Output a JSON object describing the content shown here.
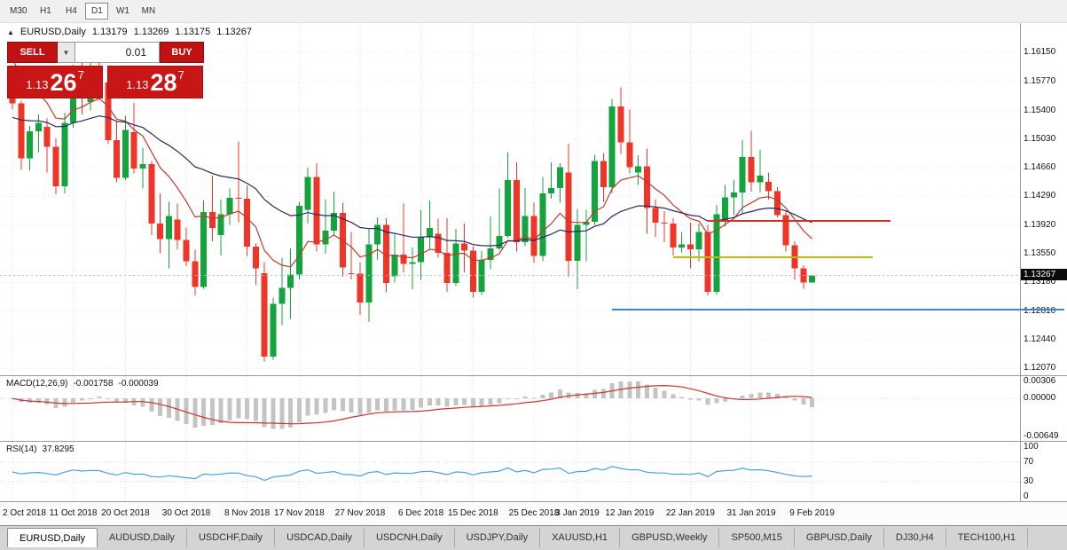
{
  "icons": {
    "panel_toggle": "▲",
    "volume_dropdown": "▼"
  },
  "toolbar": {
    "timeframes": [
      {
        "label": "M30",
        "active": false
      },
      {
        "label": "H1",
        "active": false
      },
      {
        "label": "H4",
        "active": false
      },
      {
        "label": "D1",
        "active": true
      },
      {
        "label": "W1",
        "active": false
      },
      {
        "label": "MN",
        "active": false
      }
    ]
  },
  "main_chart": {
    "symbol": "EURUSD,Daily",
    "open": "1.13179",
    "high": "1.13269",
    "low": "1.13175",
    "close": "1.13267"
  },
  "trade_panel": {
    "sell_label": "SELL",
    "buy_label": "BUY",
    "volume": "0.01",
    "bid": {
      "prefix": "1.13",
      "big": "26",
      "sup": "7"
    },
    "ask": {
      "prefix": "1.13",
      "big": "28",
      "sup": "7"
    }
  },
  "price_axis": {
    "current": "1.13267",
    "labels": [
      "1.16150",
      "1.15770",
      "1.15400",
      "1.15030",
      "1.14660",
      "1.14290",
      "1.13920",
      "1.13550",
      "1.13180",
      "1.12810",
      "1.12440",
      "1.12070"
    ]
  },
  "macd_panel": {
    "title": "MACD(12,26,9)",
    "value_main": "-0.001758",
    "value_signal": "-0.000039",
    "axis_labels": [
      {
        "text": "0.00306",
        "value": 0.00306
      },
      {
        "text": "0.00000",
        "value": 0
      },
      {
        "text": "-0.00649",
        "value": -0.00649
      }
    ]
  },
  "rsi_panel": {
    "title": "RSI(14)",
    "value": "37.8295",
    "axis_labels": [
      {
        "text": "100",
        "value": 100
      },
      {
        "text": "70",
        "value": 70
      },
      {
        "text": "30",
        "value": 30
      },
      {
        "text": "0",
        "value": 0
      }
    ]
  },
  "tabs": [
    {
      "label": "EURUSD,Daily",
      "active": true
    },
    {
      "label": "AUDUSD,Daily",
      "active": false
    },
    {
      "label": "USDCHF,Daily",
      "active": false
    },
    {
      "label": "USDCAD,Daily",
      "active": false
    },
    {
      "label": "USDCNH,Daily",
      "active": false
    },
    {
      "label": "USDJPY,Daily",
      "active": false
    },
    {
      "label": "XAUUSD,H1",
      "active": false
    },
    {
      "label": "GBPUSD,Weekly",
      "active": false
    },
    {
      "label": "SP500,M15",
      "active": false
    },
    {
      "label": "GBPUSD,Daily",
      "active": false
    },
    {
      "label": "DJ30,H4",
      "active": false
    },
    {
      "label": "TECH100,H1",
      "active": false
    }
  ],
  "chart_data": {
    "type": "candlestick",
    "title": "EURUSD,Daily",
    "bull_color": "#14a43e",
    "bear_color": "#ee3528",
    "price_axis": {
      "top": 1.1653,
      "bottom": 1.1198
    },
    "x_labels": [
      {
        "text": "2 Oct 2018",
        "bar": 0
      },
      {
        "text": "11 Oct 2018",
        "bar": 7
      },
      {
        "text": "20 Oct 2018",
        "bar": 13
      },
      {
        "text": "30 Oct 2018",
        "bar": 20
      },
      {
        "text": "8 Nov 2018",
        "bar": 27
      },
      {
        "text": "17 Nov 2018",
        "bar": 33
      },
      {
        "text": "27 Nov 2018",
        "bar": 40
      },
      {
        "text": "6 Dec 2018",
        "bar": 47
      },
      {
        "text": "15 Dec 2018",
        "bar": 53
      },
      {
        "text": "25 Dec 2018",
        "bar": 60
      },
      {
        "text": "3 Jan 2019",
        "bar": 65
      },
      {
        "text": "12 Jan 2019",
        "bar": 71
      },
      {
        "text": "22 Jan 2019",
        "bar": 78
      },
      {
        "text": "31 Jan 2019",
        "bar": 85
      },
      {
        "text": "9 Feb 2019",
        "bar": 92
      }
    ],
    "ohlc": [
      [
        1.1577,
        1.1581,
        1.1541,
        1.1549
      ],
      [
        1.1549,
        1.1553,
        1.1464,
        1.1478
      ],
      [
        1.1478,
        1.152,
        1.1463,
        1.1513
      ],
      [
        1.1513,
        1.1535,
        1.1486,
        1.1524
      ],
      [
        1.1519,
        1.153,
        1.146,
        1.1493
      ],
      [
        1.1493,
        1.1504,
        1.1432,
        1.1442
      ],
      [
        1.1442,
        1.1537,
        1.1433,
        1.1524
      ],
      [
        1.1524,
        1.1599,
        1.1518,
        1.1593
      ],
      [
        1.1593,
        1.161,
        1.1535,
        1.1561
      ],
      [
        1.1551,
        1.1606,
        1.154,
        1.158
      ],
      [
        1.158,
        1.1622,
        1.1565,
        1.1576
      ],
      [
        1.1576,
        1.1581,
        1.1497,
        1.1502
      ],
      [
        1.1502,
        1.1527,
        1.1447,
        1.1453
      ],
      [
        1.1453,
        1.1533,
        1.145,
        1.1515
      ],
      [
        1.1512,
        1.155,
        1.1459,
        1.1465
      ],
      [
        1.1465,
        1.1492,
        1.1439,
        1.1471
      ],
      [
        1.1471,
        1.1475,
        1.1379,
        1.1394
      ],
      [
        1.1394,
        1.1433,
        1.1356,
        1.1374
      ],
      [
        1.1374,
        1.1422,
        1.1336,
        1.1404
      ],
      [
        1.1399,
        1.142,
        1.1361,
        1.1373
      ],
      [
        1.1373,
        1.1389,
        1.1339,
        1.1345
      ],
      [
        1.1345,
        1.136,
        1.1301,
        1.1312
      ],
      [
        1.1312,
        1.1424,
        1.131,
        1.1409
      ],
      [
        1.1409,
        1.1456,
        1.1371,
        1.1388
      ],
      [
        1.1379,
        1.1425,
        1.1353,
        1.1406
      ],
      [
        1.1406,
        1.1439,
        1.1392,
        1.1427
      ],
      [
        1.1427,
        1.15,
        1.1395,
        1.1426
      ],
      [
        1.1426,
        1.1443,
        1.1352,
        1.1364
      ],
      [
        1.1364,
        1.1368,
        1.1315,
        1.1336
      ],
      [
        1.133,
        1.1344,
        1.1216,
        1.1222
      ],
      [
        1.1222,
        1.1298,
        1.1218,
        1.129
      ],
      [
        1.129,
        1.1349,
        1.1263,
        1.1311
      ],
      [
        1.1311,
        1.1362,
        1.1271,
        1.1328
      ],
      [
        1.1328,
        1.1422,
        1.1322,
        1.1417
      ],
      [
        1.1412,
        1.1466,
        1.1394,
        1.1454
      ],
      [
        1.1454,
        1.1472,
        1.1358,
        1.1367
      ],
      [
        1.1367,
        1.1425,
        1.1355,
        1.1385
      ],
      [
        1.1385,
        1.1435,
        1.1378,
        1.1408
      ],
      [
        1.1408,
        1.1421,
        1.1325,
        1.1337
      ],
      [
        1.133,
        1.1383,
        1.1322,
        1.1329
      ],
      [
        1.1329,
        1.1344,
        1.1276,
        1.1292
      ],
      [
        1.1292,
        1.1388,
        1.1267,
        1.1367
      ],
      [
        1.1367,
        1.1402,
        1.1347,
        1.1392
      ],
      [
        1.1392,
        1.1401,
        1.1305,
        1.1317
      ],
      [
        1.1326,
        1.138,
        1.1318,
        1.1354
      ],
      [
        1.1354,
        1.142,
        1.1331,
        1.1342
      ],
      [
        1.1342,
        1.1363,
        1.1309,
        1.1344
      ],
      [
        1.1344,
        1.1412,
        1.1321,
        1.1376
      ],
      [
        1.1376,
        1.1424,
        1.136,
        1.1388
      ],
      [
        1.1381,
        1.14,
        1.135,
        1.1356
      ],
      [
        1.1356,
        1.1401,
        1.1306,
        1.1317
      ],
      [
        1.1317,
        1.1387,
        1.1313,
        1.1368
      ],
      [
        1.1368,
        1.1394,
        1.1331,
        1.1359
      ],
      [
        1.1359,
        1.1365,
        1.1298,
        1.1306
      ],
      [
        1.1306,
        1.1359,
        1.1302,
        1.1347
      ],
      [
        1.1347,
        1.1403,
        1.1335,
        1.1362
      ],
      [
        1.1362,
        1.1439,
        1.1359,
        1.1378
      ],
      [
        1.1378,
        1.1486,
        1.1375,
        1.145
      ],
      [
        1.145,
        1.1473,
        1.1358,
        1.137
      ],
      [
        1.137,
        1.144,
        1.1365,
        1.1404
      ],
      [
        1.1404,
        1.1421,
        1.1343,
        1.1352
      ],
      [
        1.1352,
        1.1454,
        1.1345,
        1.1433
      ],
      [
        1.1433,
        1.1473,
        1.1426,
        1.144
      ],
      [
        1.144,
        1.1472,
        1.1421,
        1.1467
      ],
      [
        1.146,
        1.1497,
        1.1325,
        1.1346
      ],
      [
        1.1346,
        1.1413,
        1.1309,
        1.1392
      ],
      [
        1.1392,
        1.1412,
        1.1345,
        1.1396
      ],
      [
        1.1396,
        1.1483,
        1.1392,
        1.1475
      ],
      [
        1.1475,
        1.1485,
        1.1422,
        1.1441
      ],
      [
        1.1441,
        1.1555,
        1.1433,
        1.1545
      ],
      [
        1.1545,
        1.157,
        1.1484,
        1.1499
      ],
      [
        1.1499,
        1.1541,
        1.1459,
        1.1467
      ],
      [
        1.146,
        1.1482,
        1.1444,
        1.1468
      ],
      [
        1.1468,
        1.1491,
        1.1381,
        1.1414
      ],
      [
        1.1414,
        1.1425,
        1.1377,
        1.1395
      ],
      [
        1.1395,
        1.141,
        1.137,
        1.1394
      ],
      [
        1.1394,
        1.1401,
        1.1353,
        1.1363
      ],
      [
        1.1363,
        1.1383,
        1.1357,
        1.1367
      ],
      [
        1.1367,
        1.1395,
        1.1336,
        1.1361
      ],
      [
        1.1361,
        1.1394,
        1.1345,
        1.1383
      ],
      [
        1.1383,
        1.1392,
        1.1301,
        1.1306
      ],
      [
        1.1306,
        1.1418,
        1.1302,
        1.1406
      ],
      [
        1.1398,
        1.1444,
        1.139,
        1.1428
      ],
      [
        1.1428,
        1.145,
        1.1405,
        1.1434
      ],
      [
        1.1434,
        1.1502,
        1.1406,
        1.148
      ],
      [
        1.148,
        1.1514,
        1.1435,
        1.1447
      ],
      [
        1.1447,
        1.1489,
        1.1434,
        1.1456
      ],
      [
        1.1448,
        1.146,
        1.1425,
        1.1436
      ],
      [
        1.1436,
        1.1441,
        1.1402,
        1.1405
      ],
      [
        1.1405,
        1.141,
        1.1358,
        1.1366
      ],
      [
        1.1366,
        1.1371,
        1.1321,
        1.1336
      ],
      [
        1.1336,
        1.134,
        1.131,
        1.1318
      ],
      [
        1.13179,
        1.13269,
        1.13175,
        1.13267
      ]
    ],
    "moving_averages": [
      {
        "period": 10,
        "color": "#c0392b",
        "seed": 1.162
      },
      {
        "period": 30,
        "color": "#27275f",
        "seed": 1.153
      }
    ],
    "hlines": [
      {
        "price": 1.1397,
        "color": "#cc3322",
        "bar_start": 80,
        "bar_end": 101,
        "extend_right": false
      },
      {
        "price": 1.135,
        "color": "#bdbd00",
        "bar_start": 76,
        "bar_end": 99,
        "extend_right": false
      },
      {
        "price": 1.1283,
        "color": "#3a87d8",
        "bar_start": 69,
        "bar_end": null,
        "extend_right": true
      }
    ],
    "bid_line": 1.13267,
    "macd": {
      "fast": 12,
      "slow": 26,
      "signal": 9,
      "scale_max": 0.0038,
      "scale_min": -0.0072,
      "hist_color": "#c4c4c4",
      "signal_color": "#cc3333"
    },
    "rsi": {
      "period": 14,
      "color": "#4aa0d8",
      "levels": [
        70,
        30
      ]
    }
  }
}
